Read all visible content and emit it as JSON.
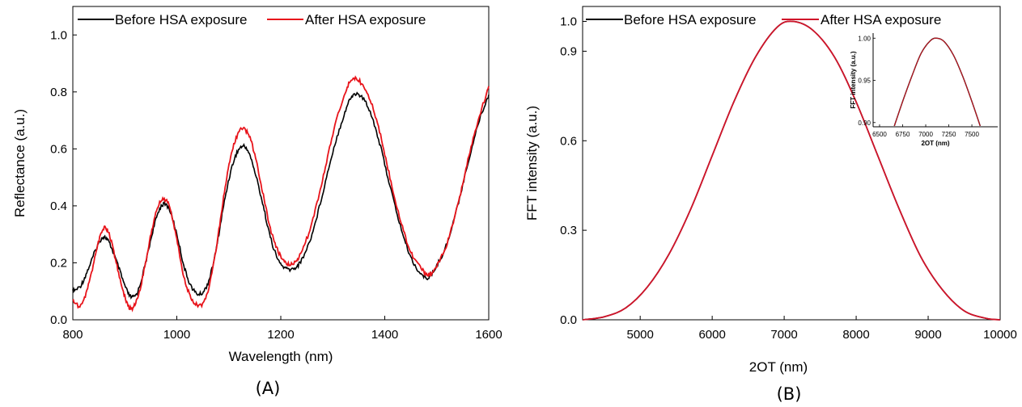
{
  "chart_data": [
    {
      "type": "line",
      "panel_label": "(A)",
      "xlabel": "Wavelength (nm)",
      "ylabel": "Reflectance (a.u.)",
      "xlim": [
        800,
        1600
      ],
      "ylim": [
        0.0,
        1.1
      ],
      "xticks": [
        800,
        1000,
        1200,
        1400,
        1600
      ],
      "yticks": [
        0.0,
        0.2,
        0.4,
        0.6,
        0.8,
        1.0
      ],
      "xtick_labels": [
        "800",
        "1000",
        "1200",
        "1400",
        "1600"
      ],
      "ytick_labels": [
        "0.0",
        "0.2",
        "0.4",
        "0.6",
        "0.8",
        "1.0"
      ],
      "legend_position": "top-left",
      "grid": false,
      "series": [
        {
          "name": "Before HSA exposure",
          "color": "#000000",
          "x": [
            800,
            815,
            830,
            845,
            858,
            870,
            885,
            900,
            912,
            925,
            940,
            955,
            970,
            985,
            1000,
            1015,
            1030,
            1045,
            1060,
            1075,
            1090,
            1105,
            1120,
            1135,
            1150,
            1165,
            1180,
            1195,
            1210,
            1225,
            1240,
            1260,
            1280,
            1300,
            1320,
            1335,
            1350,
            1370,
            1390,
            1410,
            1430,
            1450,
            1470,
            1485,
            1500,
            1520,
            1540,
            1560,
            1580,
            1600
          ],
          "y": [
            0.1,
            0.12,
            0.18,
            0.25,
            0.29,
            0.27,
            0.2,
            0.12,
            0.08,
            0.1,
            0.2,
            0.32,
            0.4,
            0.39,
            0.3,
            0.18,
            0.11,
            0.09,
            0.13,
            0.24,
            0.4,
            0.53,
            0.6,
            0.6,
            0.52,
            0.41,
            0.29,
            0.21,
            0.18,
            0.18,
            0.21,
            0.3,
            0.44,
            0.59,
            0.71,
            0.78,
            0.79,
            0.74,
            0.62,
            0.47,
            0.33,
            0.22,
            0.16,
            0.15,
            0.19,
            0.27,
            0.4,
            0.55,
            0.69,
            0.79
          ]
        },
        {
          "name": "After HSA exposure",
          "color": "#e8141b",
          "x": [
            800,
            815,
            830,
            845,
            858,
            870,
            885,
            900,
            912,
            925,
            940,
            955,
            970,
            985,
            1000,
            1015,
            1030,
            1045,
            1060,
            1075,
            1090,
            1105,
            1120,
            1135,
            1150,
            1165,
            1180,
            1195,
            1210,
            1225,
            1240,
            1260,
            1280,
            1300,
            1320,
            1335,
            1350,
            1370,
            1390,
            1410,
            1430,
            1450,
            1470,
            1485,
            1500,
            1520,
            1540,
            1560,
            1580,
            1600
          ],
          "y": [
            0.07,
            0.05,
            0.12,
            0.24,
            0.32,
            0.3,
            0.19,
            0.08,
            0.04,
            0.08,
            0.2,
            0.34,
            0.42,
            0.4,
            0.28,
            0.14,
            0.07,
            0.05,
            0.1,
            0.24,
            0.43,
            0.58,
            0.66,
            0.66,
            0.58,
            0.45,
            0.32,
            0.24,
            0.2,
            0.2,
            0.24,
            0.34,
            0.49,
            0.65,
            0.78,
            0.84,
            0.84,
            0.78,
            0.66,
            0.5,
            0.35,
            0.24,
            0.18,
            0.16,
            0.19,
            0.27,
            0.4,
            0.56,
            0.7,
            0.82
          ]
        }
      ]
    },
    {
      "type": "line",
      "panel_label": "(B)",
      "xlabel": "2OT (nm)",
      "ylabel": "FFT intensity (a.u.)",
      "xlim": [
        4200,
        10000
      ],
      "ylim": [
        0.0,
        1.05
      ],
      "xticks": [
        5000,
        6000,
        7000,
        8000,
        9000,
        10000
      ],
      "yticks": [
        0.0,
        0.3,
        0.6,
        0.9,
        1.0
      ],
      "xtick_labels": [
        "5000",
        "6000",
        "7000",
        "8000",
        "9000",
        "10000"
      ],
      "ytick_labels": [
        "0.0",
        "0.3",
        "0.6",
        "0.9",
        "1.0"
      ],
      "legend_position": "top",
      "grid": false,
      "series": [
        {
          "name": "Before HSA exposure",
          "color": "#000000",
          "peak_x": 7120,
          "peak_y": 1.0,
          "x": [
            4200,
            4500,
            4800,
            5100,
            5400,
            5700,
            6000,
            6300,
            6600,
            6900,
            7120,
            7400,
            7700,
            8000,
            8300,
            8600,
            8900,
            9200,
            9500,
            9800,
            10000
          ],
          "y": [
            0.0,
            0.01,
            0.04,
            0.11,
            0.22,
            0.37,
            0.55,
            0.73,
            0.88,
            0.98,
            1.0,
            0.97,
            0.88,
            0.73,
            0.55,
            0.37,
            0.21,
            0.1,
            0.03,
            0.005,
            0.0
          ]
        },
        {
          "name": "After HSA exposure",
          "color": "#d0142a",
          "peak_x": 7120,
          "peak_y": 1.0,
          "x": [
            4200,
            4500,
            4800,
            5100,
            5400,
            5700,
            6000,
            6300,
            6600,
            6900,
            7120,
            7400,
            7700,
            8000,
            8300,
            8600,
            8900,
            9200,
            9500,
            9800,
            10000
          ],
          "y": [
            0.0,
            0.01,
            0.04,
            0.11,
            0.22,
            0.37,
            0.55,
            0.73,
            0.88,
            0.98,
            1.0,
            0.97,
            0.88,
            0.73,
            0.55,
            0.37,
            0.21,
            0.1,
            0.03,
            0.005,
            0.0
          ]
        }
      ],
      "inset": {
        "xlabel": "2OT (nm)",
        "ylabel": "FFT intensity (a.u.)",
        "xlim": [
          6430,
          7780
        ],
        "ylim": [
          0.895,
          1.006
        ],
        "xticks": [
          6500,
          6750,
          7000,
          7250,
          7500
        ],
        "yticks": [
          0.9,
          0.95,
          1.0
        ],
        "xtick_labels": [
          "6500",
          "6750",
          "7000",
          "7250",
          "7500"
        ],
        "ytick_labels": [
          "0.90",
          "0.95",
          "1.00"
        ],
        "x": [
          6660,
          6750,
          6850,
          6950,
          7050,
          7120,
          7200,
          7300,
          7400,
          7500,
          7590
        ],
        "y": [
          0.896,
          0.925,
          0.955,
          0.982,
          0.997,
          1.0,
          0.996,
          0.98,
          0.955,
          0.925,
          0.896
        ]
      }
    }
  ]
}
